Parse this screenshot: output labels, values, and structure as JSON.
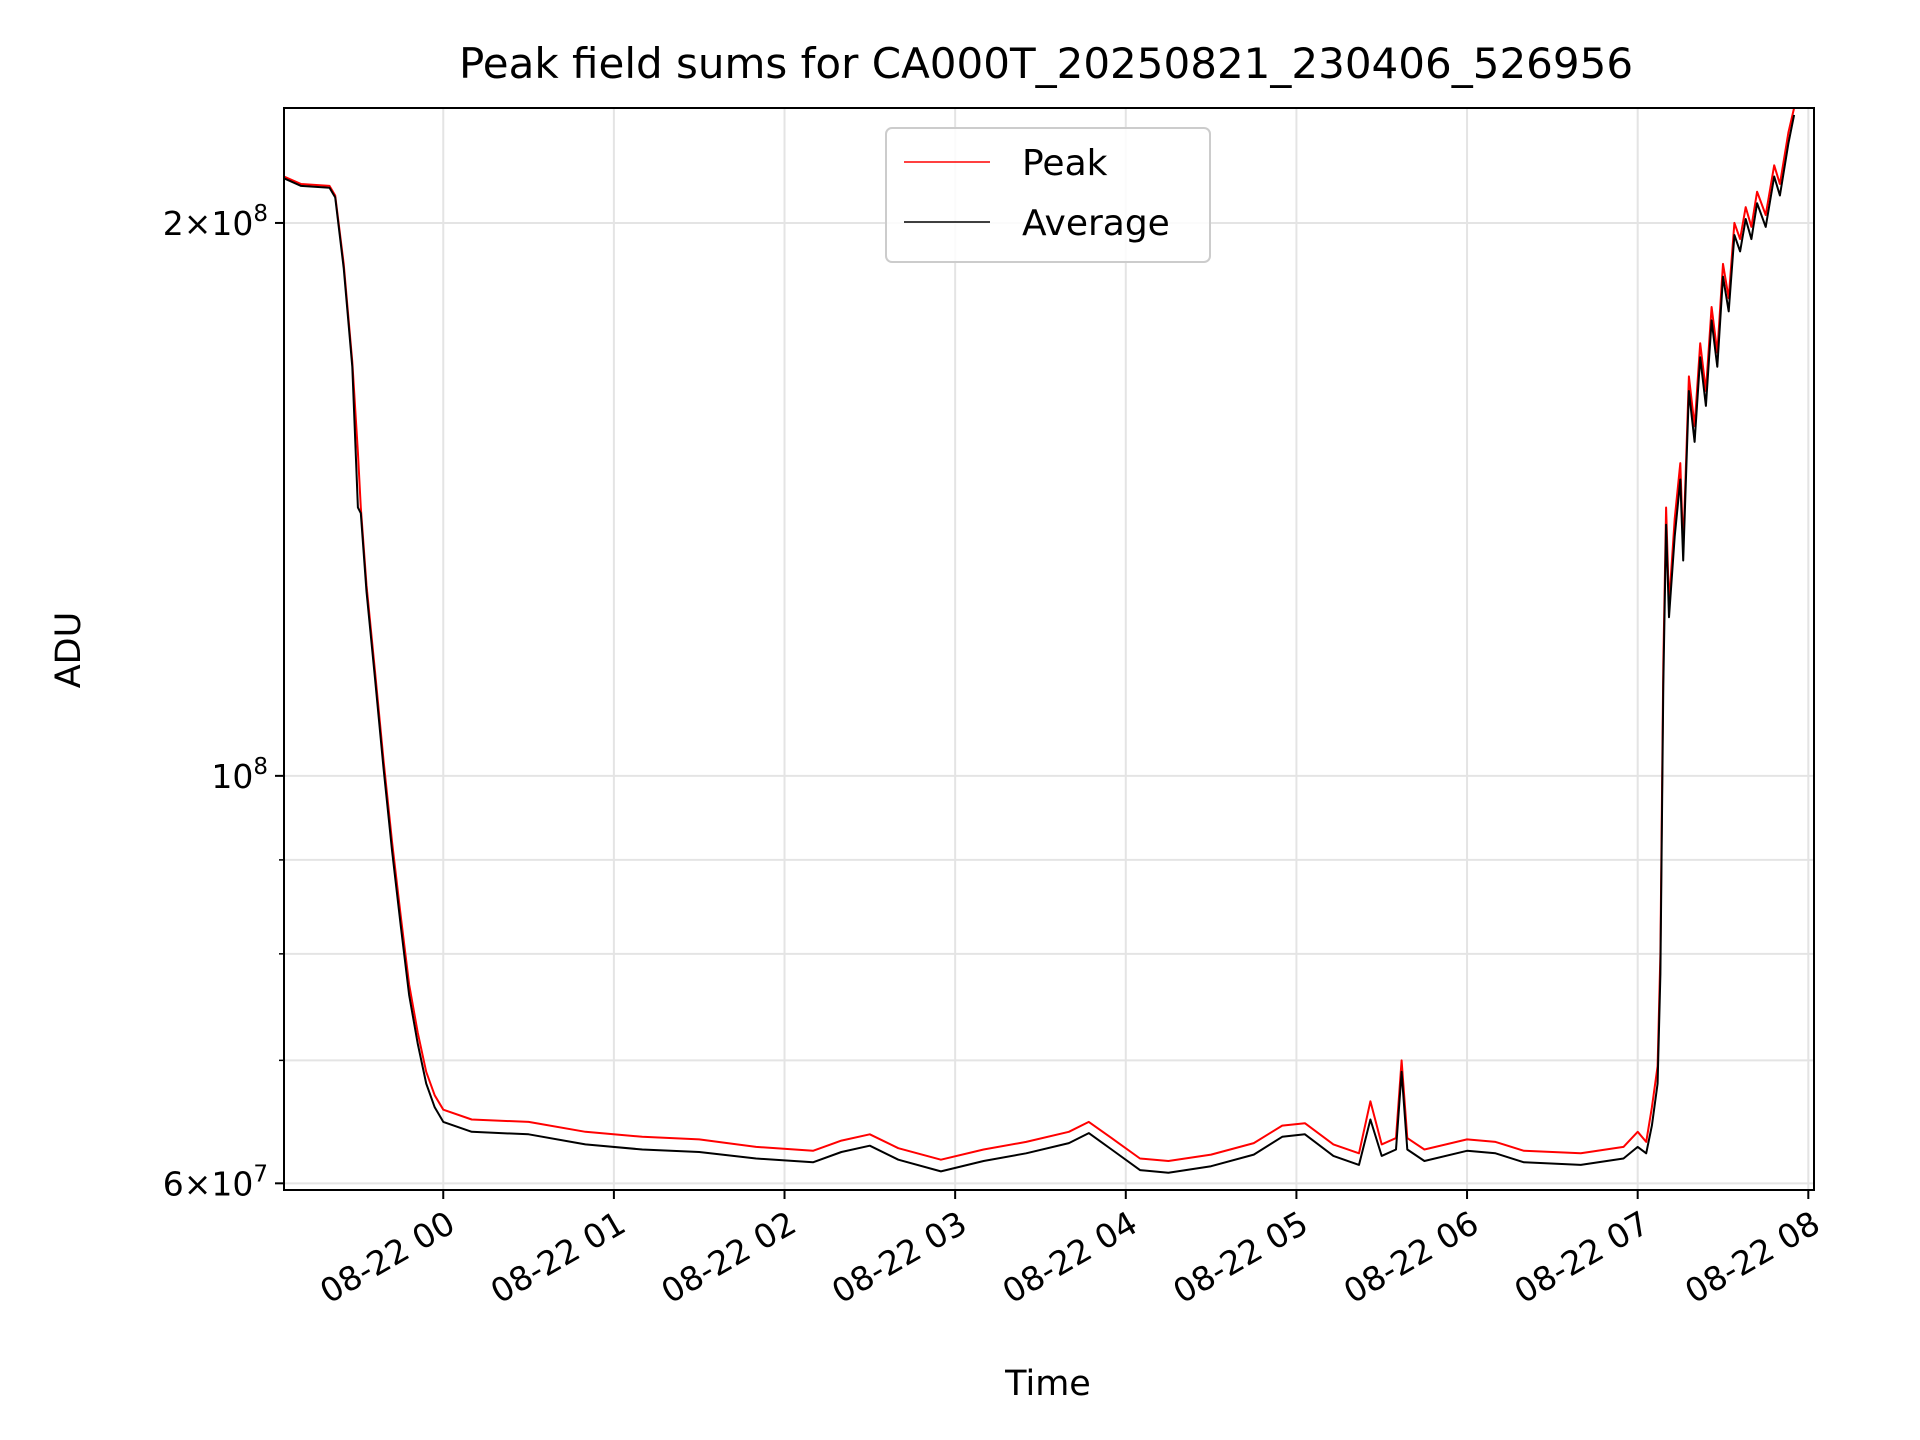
{
  "chart_data": {
    "type": "line",
    "title": "Peak field sums for CA000T_20250821_230406_526956",
    "xlabel": "Time",
    "ylabel": "ADU",
    "y_scale": "log",
    "ylim": [
      59500000,
      231000000
    ],
    "xlim": [
      "2025-08-21 23:04",
      "2025-08-22 08:02"
    ],
    "grid": true,
    "legend_placement": "upper center",
    "x_ticks": [
      {
        "t": "2025-08-22 00:00",
        "label": "08-22 00"
      },
      {
        "t": "2025-08-22 01:00",
        "label": "08-22 01"
      },
      {
        "t": "2025-08-22 02:00",
        "label": "08-22 02"
      },
      {
        "t": "2025-08-22 03:00",
        "label": "08-22 03"
      },
      {
        "t": "2025-08-22 04:00",
        "label": "08-22 04"
      },
      {
        "t": "2025-08-22 05:00",
        "label": "08-22 05"
      },
      {
        "t": "2025-08-22 06:00",
        "label": "08-22 06"
      },
      {
        "t": "2025-08-22 07:00",
        "label": "08-22 07"
      },
      {
        "t": "2025-08-22 08:00",
        "label": "08-22 08"
      }
    ],
    "y_major_ticks": [
      {
        "value": 60000000,
        "mantissa": "6",
        "exp": "7",
        "label": "6×10^7"
      },
      {
        "value": 100000000,
        "mantissa": "",
        "exp": "8",
        "label": "10^8"
      },
      {
        "value": 200000000,
        "mantissa": "2",
        "exp": "8",
        "label": "2×10^8"
      }
    ],
    "y_minor_ticks": [
      70000000,
      80000000,
      90000000
    ],
    "series": [
      {
        "name": "Peak",
        "color": "#ff0000",
        "points": [
          [
            "2025-08-21 23:04",
            212000000
          ],
          [
            "2025-08-21 23:10",
            210000000
          ],
          [
            "2025-08-21 23:20",
            209500000
          ],
          [
            "2025-08-21 23:22",
            207000000
          ],
          [
            "2025-08-21 23:25",
            190000000
          ],
          [
            "2025-08-21 23:28",
            168000000
          ],
          [
            "2025-08-21 23:30",
            150000000
          ],
          [
            "2025-08-21 23:31",
            140000000
          ],
          [
            "2025-08-21 23:33",
            127000000
          ],
          [
            "2025-08-21 23:36",
            114000000
          ],
          [
            "2025-08-21 23:39",
            102000000
          ],
          [
            "2025-08-21 23:42",
            92000000
          ],
          [
            "2025-08-21 23:45",
            84000000
          ],
          [
            "2025-08-21 23:48",
            77000000
          ],
          [
            "2025-08-21 23:51",
            72500000
          ],
          [
            "2025-08-21 23:54",
            69000000
          ],
          [
            "2025-08-21 23:57",
            67000000
          ],
          [
            "2025-08-22 00:00",
            65800000
          ],
          [
            "2025-08-22 00:10",
            65000000
          ],
          [
            "2025-08-22 00:30",
            64800000
          ],
          [
            "2025-08-22 00:50",
            64000000
          ],
          [
            "2025-08-22 01:10",
            63600000
          ],
          [
            "2025-08-22 01:30",
            63400000
          ],
          [
            "2025-08-22 01:50",
            62800000
          ],
          [
            "2025-08-22 02:10",
            62500000
          ],
          [
            "2025-08-22 02:20",
            63300000
          ],
          [
            "2025-08-22 02:30",
            63800000
          ],
          [
            "2025-08-22 02:40",
            62700000
          ],
          [
            "2025-08-22 02:55",
            61800000
          ],
          [
            "2025-08-22 03:10",
            62600000
          ],
          [
            "2025-08-22 03:25",
            63200000
          ],
          [
            "2025-08-22 03:40",
            64000000
          ],
          [
            "2025-08-22 03:47",
            64800000
          ],
          [
            "2025-08-22 03:55",
            63500000
          ],
          [
            "2025-08-22 04:05",
            61900000
          ],
          [
            "2025-08-22 04:15",
            61700000
          ],
          [
            "2025-08-22 04:30",
            62200000
          ],
          [
            "2025-08-22 04:45",
            63100000
          ],
          [
            "2025-08-22 04:55",
            64500000
          ],
          [
            "2025-08-22 05:03",
            64700000
          ],
          [
            "2025-08-22 05:13",
            63000000
          ],
          [
            "2025-08-22 05:22",
            62300000
          ],
          [
            "2025-08-22 05:26",
            66500000
          ],
          [
            "2025-08-22 05:30",
            63000000
          ],
          [
            "2025-08-22 05:35",
            63500000
          ],
          [
            "2025-08-22 05:37",
            70000000
          ],
          [
            "2025-08-22 05:39",
            63500000
          ],
          [
            "2025-08-22 05:45",
            62600000
          ],
          [
            "2025-08-22 06:00",
            63400000
          ],
          [
            "2025-08-22 06:10",
            63200000
          ],
          [
            "2025-08-22 06:20",
            62500000
          ],
          [
            "2025-08-22 06:40",
            62300000
          ],
          [
            "2025-08-22 06:55",
            62800000
          ],
          [
            "2025-08-22 07:00",
            64000000
          ],
          [
            "2025-08-22 07:03",
            63200000
          ],
          [
            "2025-08-22 07:05",
            66000000
          ],
          [
            "2025-08-22 07:07",
            69500000
          ],
          [
            "2025-08-22 07:08",
            80000000
          ],
          [
            "2025-08-22 07:09",
            115000000
          ],
          [
            "2025-08-22 07:10",
            140000000
          ],
          [
            "2025-08-22 07:11",
            124000000
          ],
          [
            "2025-08-22 07:13",
            138000000
          ],
          [
            "2025-08-22 07:15",
            148000000
          ],
          [
            "2025-08-22 07:16",
            133000000
          ],
          [
            "2025-08-22 07:18",
            165000000
          ],
          [
            "2025-08-22 07:20",
            155000000
          ],
          [
            "2025-08-22 07:22",
            172000000
          ],
          [
            "2025-08-22 07:24",
            162000000
          ],
          [
            "2025-08-22 07:26",
            180000000
          ],
          [
            "2025-08-22 07:28",
            170000000
          ],
          [
            "2025-08-22 07:30",
            190000000
          ],
          [
            "2025-08-22 07:32",
            182000000
          ],
          [
            "2025-08-22 07:34",
            200000000
          ],
          [
            "2025-08-22 07:36",
            196000000
          ],
          [
            "2025-08-22 07:38",
            204000000
          ],
          [
            "2025-08-22 07:40",
            199000000
          ],
          [
            "2025-08-22 07:42",
            208000000
          ],
          [
            "2025-08-22 07:45",
            202000000
          ],
          [
            "2025-08-22 07:48",
            215000000
          ],
          [
            "2025-08-22 07:50",
            210000000
          ],
          [
            "2025-08-22 07:53",
            224000000
          ],
          [
            "2025-08-22 07:55",
            231000000
          ]
        ]
      },
      {
        "name": "Average",
        "color": "#000000",
        "points": [
          [
            "2025-08-21 23:04",
            211500000
          ],
          [
            "2025-08-21 23:10",
            209500000
          ],
          [
            "2025-08-21 23:20",
            209000000
          ],
          [
            "2025-08-21 23:22",
            206500000
          ],
          [
            "2025-08-21 23:25",
            189000000
          ],
          [
            "2025-08-21 23:28",
            167000000
          ],
          [
            "2025-08-21 23:30",
            140000000
          ],
          [
            "2025-08-21 23:31",
            139000000
          ],
          [
            "2025-08-21 23:33",
            126000000
          ],
          [
            "2025-08-21 23:36",
            113000000
          ],
          [
            "2025-08-21 23:39",
            101000000
          ],
          [
            "2025-08-21 23:42",
            91000000
          ],
          [
            "2025-08-21 23:45",
            83000000
          ],
          [
            "2025-08-21 23:48",
            76000000
          ],
          [
            "2025-08-21 23:51",
            71500000
          ],
          [
            "2025-08-21 23:54",
            68000000
          ],
          [
            "2025-08-21 23:57",
            66000000
          ],
          [
            "2025-08-22 00:00",
            64800000
          ],
          [
            "2025-08-22 00:10",
            64000000
          ],
          [
            "2025-08-22 00:30",
            63800000
          ],
          [
            "2025-08-22 00:50",
            63000000
          ],
          [
            "2025-08-22 01:10",
            62600000
          ],
          [
            "2025-08-22 01:30",
            62400000
          ],
          [
            "2025-08-22 01:50",
            61900000
          ],
          [
            "2025-08-22 02:10",
            61600000
          ],
          [
            "2025-08-22 02:20",
            62400000
          ],
          [
            "2025-08-22 02:30",
            62900000
          ],
          [
            "2025-08-22 02:40",
            61800000
          ],
          [
            "2025-08-22 02:55",
            60900000
          ],
          [
            "2025-08-22 03:10",
            61700000
          ],
          [
            "2025-08-22 03:25",
            62300000
          ],
          [
            "2025-08-22 03:40",
            63100000
          ],
          [
            "2025-08-22 03:47",
            63900000
          ],
          [
            "2025-08-22 03:55",
            62600000
          ],
          [
            "2025-08-22 04:05",
            61000000
          ],
          [
            "2025-08-22 04:15",
            60800000
          ],
          [
            "2025-08-22 04:30",
            61300000
          ],
          [
            "2025-08-22 04:45",
            62200000
          ],
          [
            "2025-08-22 04:55",
            63600000
          ],
          [
            "2025-08-22 05:03",
            63800000
          ],
          [
            "2025-08-22 05:13",
            62100000
          ],
          [
            "2025-08-22 05:22",
            61400000
          ],
          [
            "2025-08-22 05:26",
            65000000
          ],
          [
            "2025-08-22 05:30",
            62100000
          ],
          [
            "2025-08-22 05:35",
            62600000
          ],
          [
            "2025-08-22 05:37",
            69000000
          ],
          [
            "2025-08-22 05:39",
            62600000
          ],
          [
            "2025-08-22 05:45",
            61700000
          ],
          [
            "2025-08-22 06:00",
            62500000
          ],
          [
            "2025-08-22 06:10",
            62300000
          ],
          [
            "2025-08-22 06:20",
            61600000
          ],
          [
            "2025-08-22 06:40",
            61400000
          ],
          [
            "2025-08-22 06:55",
            61900000
          ],
          [
            "2025-08-22 07:00",
            62800000
          ],
          [
            "2025-08-22 07:03",
            62300000
          ],
          [
            "2025-08-22 07:05",
            64500000
          ],
          [
            "2025-08-22 07:07",
            68000000
          ],
          [
            "2025-08-22 07:08",
            78000000
          ],
          [
            "2025-08-22 07:09",
            112000000
          ],
          [
            "2025-08-22 07:10",
            137000000
          ],
          [
            "2025-08-22 07:11",
            122000000
          ],
          [
            "2025-08-22 07:13",
            135000000
          ],
          [
            "2025-08-22 07:15",
            145000000
          ],
          [
            "2025-08-22 07:16",
            131000000
          ],
          [
            "2025-08-22 07:18",
            162000000
          ],
          [
            "2025-08-22 07:20",
            152000000
          ],
          [
            "2025-08-22 07:22",
            169000000
          ],
          [
            "2025-08-22 07:24",
            159000000
          ],
          [
            "2025-08-22 07:26",
            177000000
          ],
          [
            "2025-08-22 07:28",
            167000000
          ],
          [
            "2025-08-22 07:30",
            187000000
          ],
          [
            "2025-08-22 07:32",
            179000000
          ],
          [
            "2025-08-22 07:34",
            197000000
          ],
          [
            "2025-08-22 07:36",
            193000000
          ],
          [
            "2025-08-22 07:38",
            201000000
          ],
          [
            "2025-08-22 07:40",
            196000000
          ],
          [
            "2025-08-22 07:42",
            205000000
          ],
          [
            "2025-08-22 07:45",
            199000000
          ],
          [
            "2025-08-22 07:48",
            212000000
          ],
          [
            "2025-08-22 07:50",
            207000000
          ],
          [
            "2025-08-22 07:53",
            221000000
          ],
          [
            "2025-08-22 07:55",
            229000000
          ]
        ]
      }
    ]
  }
}
